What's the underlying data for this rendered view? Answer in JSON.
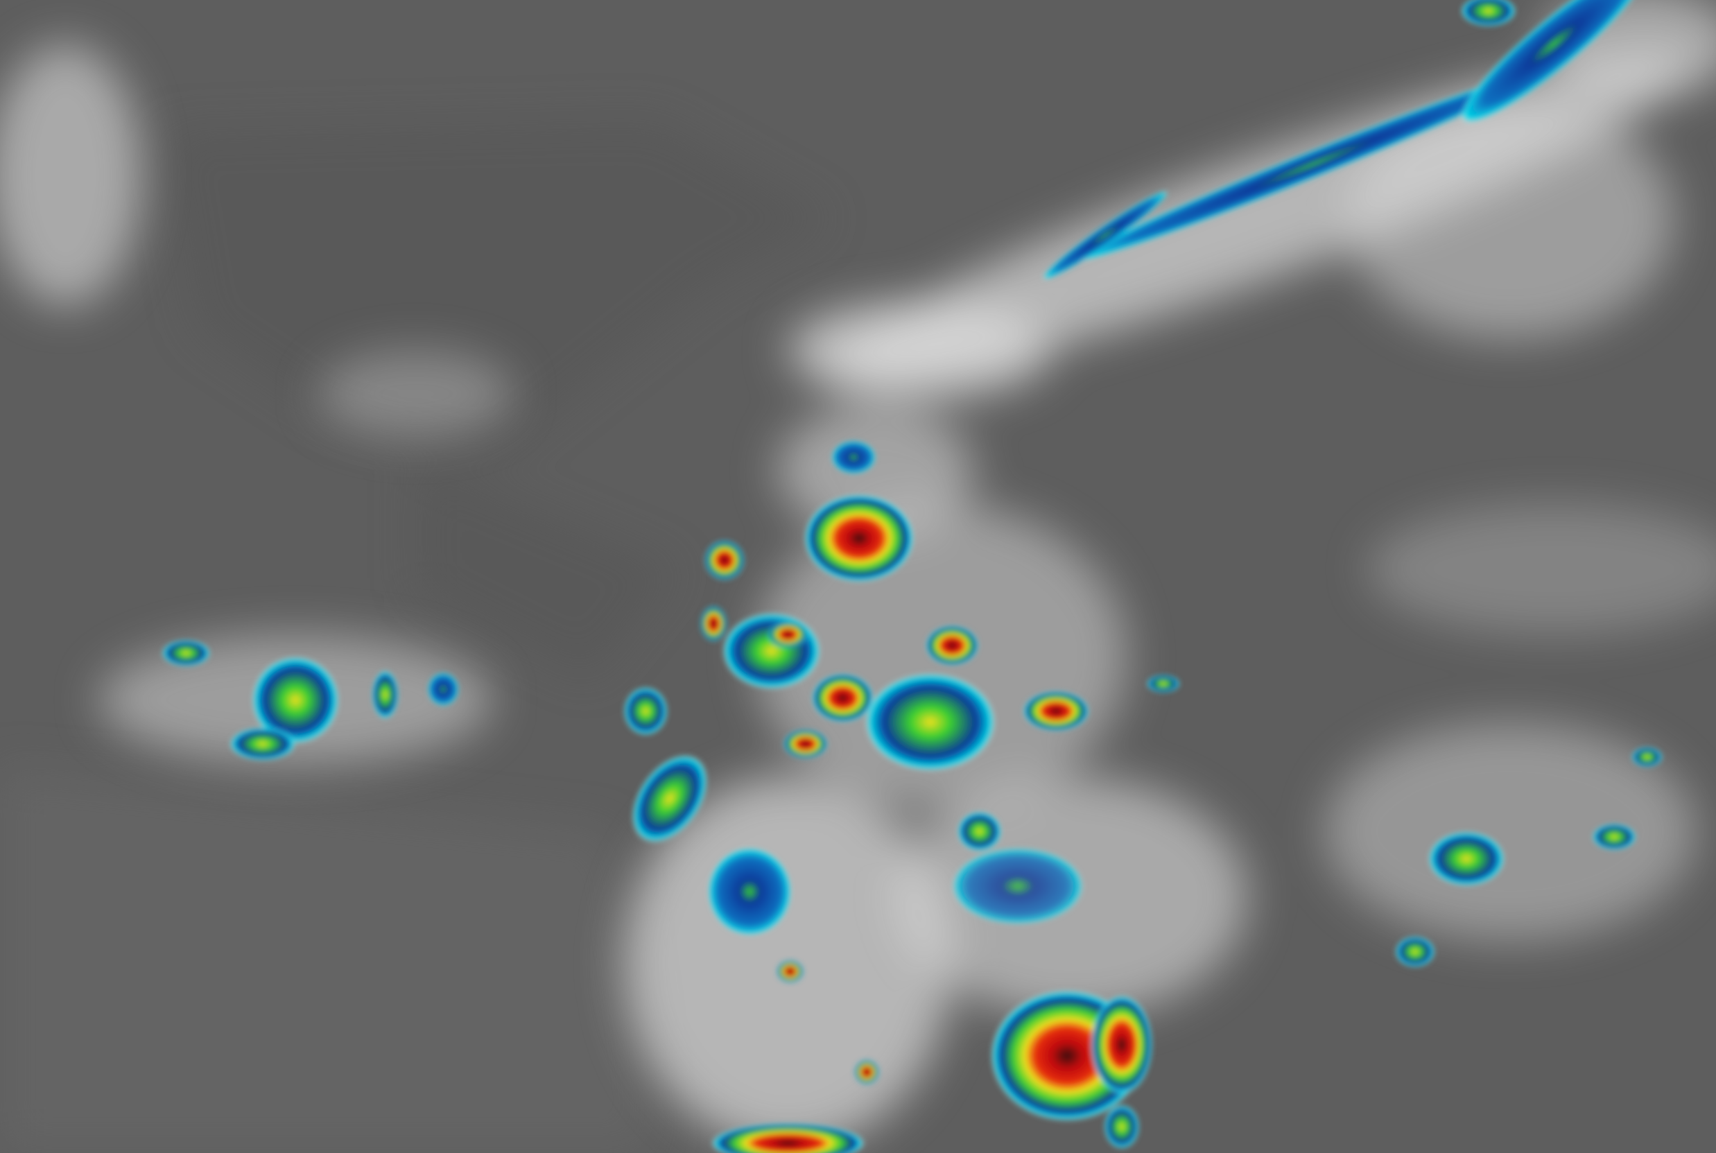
{
  "colors": {
    "background": "#5e5e5e",
    "cloud": "#e8e8e8",
    "cold_cyan": "#00d8e8",
    "cold_blue": "#0a3a9a",
    "cold_green": "#3ad030",
    "cold_yellow": "#f0e020",
    "cold_red": "#d81010",
    "coldest_dark": "#3a0808"
  }
}
